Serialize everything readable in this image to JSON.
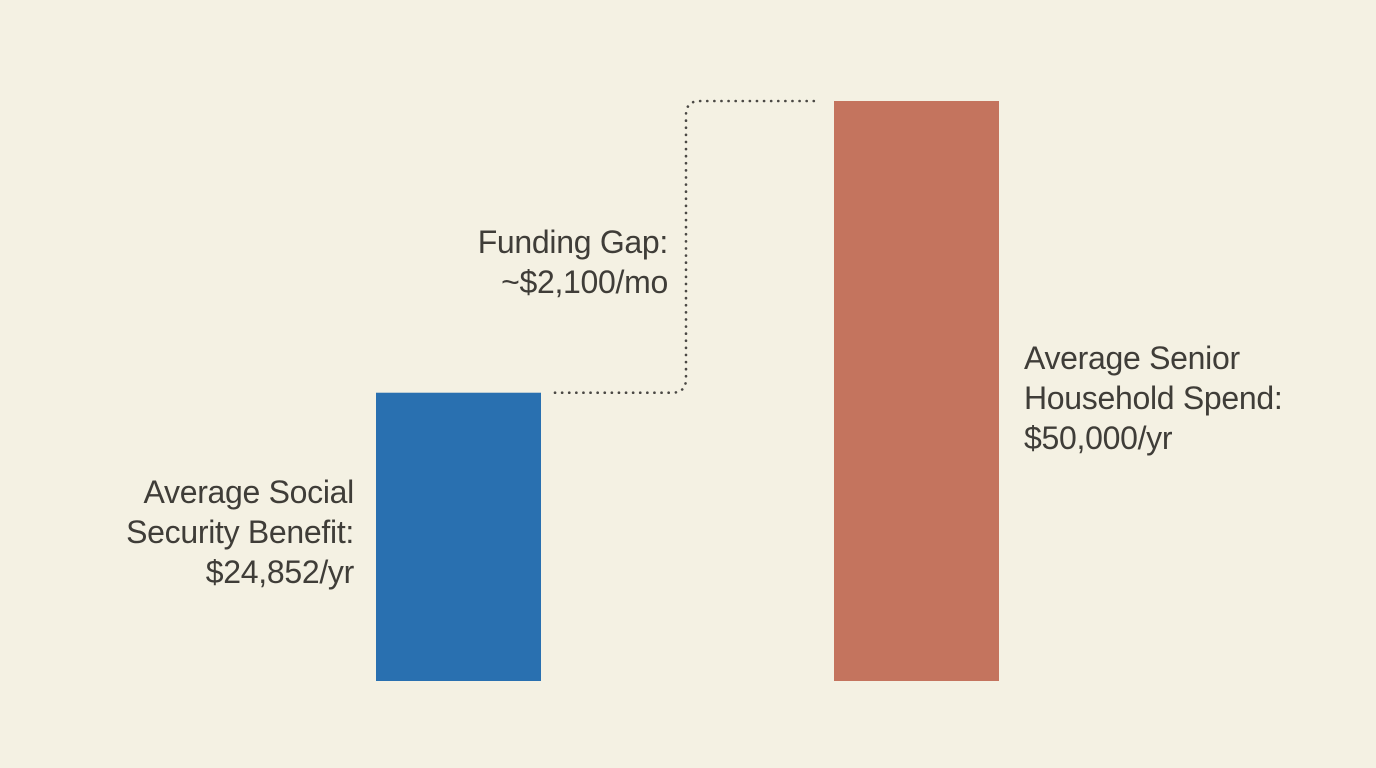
{
  "chart_data": {
    "type": "bar",
    "categories": [
      "Average Social Security Benefit",
      "Average Senior Household Spend"
    ],
    "values": [
      24852,
      50000
    ],
    "unit": "$/yr",
    "ylim": [
      0,
      50000
    ],
    "grid": false,
    "axes_visible": false,
    "colors": {
      "benefit": "#2970b0",
      "spend": "#c4745e",
      "background": "#f4f1e3",
      "text": "#3f3d38",
      "connector": "#4a4844"
    },
    "labels": {
      "benefit": {
        "line1": "Average Social",
        "line2": "Security Benefit:",
        "line3": "$24,852/yr"
      },
      "spend": {
        "line1": "Average Senior",
        "line2": "Household Spend:",
        "line3": "$50,000/yr"
      }
    },
    "annotation": {
      "line1": "Funding Gap:",
      "line2": "~$2,100/mo"
    }
  }
}
